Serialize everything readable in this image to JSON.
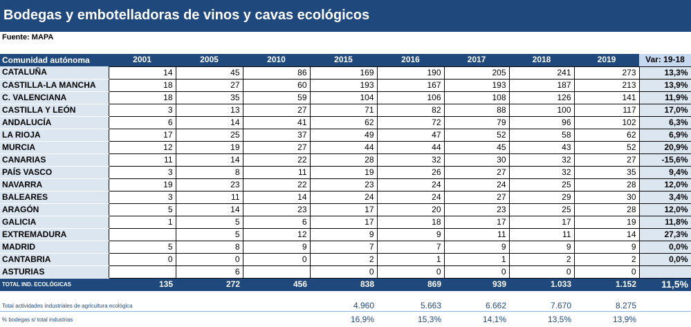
{
  "title": "Bodegas y embotelladoras de vinos y cavas ecológicos",
  "source": "Fuente: MAPA",
  "header": {
    "region": "Comunidad autónoma",
    "years": [
      "2001",
      "2005",
      "2010",
      "2015",
      "2016",
      "2017",
      "2018",
      "2019"
    ],
    "var": "Var: 19-18"
  },
  "rows": [
    {
      "name": "CATALUÑA",
      "values": [
        "14",
        "45",
        "86",
        "169",
        "190",
        "205",
        "241",
        "273"
      ],
      "var": "13,3%"
    },
    {
      "name": "CASTILLA-LA MANCHA",
      "values": [
        "18",
        "27",
        "60",
        "193",
        "167",
        "193",
        "187",
        "213"
      ],
      "var": "13,9%"
    },
    {
      "name": "C. VALENCIANA",
      "values": [
        "18",
        "35",
        "59",
        "104",
        "106",
        "108",
        "126",
        "141"
      ],
      "var": "11,9%"
    },
    {
      "name": "CASTILLA Y LEÓN",
      "values": [
        "3",
        "13",
        "27",
        "71",
        "82",
        "88",
        "100",
        "117"
      ],
      "var": "17,0%"
    },
    {
      "name": "ANDALUCÍA",
      "values": [
        "6",
        "14",
        "41",
        "62",
        "72",
        "79",
        "96",
        "102"
      ],
      "var": "6,3%"
    },
    {
      "name": "LA RIOJA",
      "values": [
        "17",
        "25",
        "37",
        "49",
        "47",
        "52",
        "58",
        "62"
      ],
      "var": "6,9%"
    },
    {
      "name": "MURCIA",
      "values": [
        "12",
        "19",
        "27",
        "44",
        "44",
        "45",
        "43",
        "52"
      ],
      "var": "20,9%"
    },
    {
      "name": "CANARIAS",
      "values": [
        "11",
        "14",
        "22",
        "28",
        "32",
        "30",
        "32",
        "27"
      ],
      "var": "-15,6%"
    },
    {
      "name": "PAÍS VASCO",
      "values": [
        "3",
        "8",
        "11",
        "19",
        "26",
        "27",
        "32",
        "35"
      ],
      "var": "9,4%"
    },
    {
      "name": "NAVARRA",
      "values": [
        "19",
        "23",
        "22",
        "23",
        "24",
        "24",
        "25",
        "28"
      ],
      "var": "12,0%"
    },
    {
      "name": "BALEARES",
      "values": [
        "3",
        "11",
        "14",
        "24",
        "24",
        "27",
        "29",
        "30"
      ],
      "var": "3,4%"
    },
    {
      "name": "ARAGÓN",
      "values": [
        "5",
        "14",
        "23",
        "17",
        "20",
        "23",
        "25",
        "28"
      ],
      "var": "12,0%"
    },
    {
      "name": "GALICIA",
      "values": [
        "1",
        "5",
        "6",
        "17",
        "18",
        "17",
        "17",
        "19"
      ],
      "var": "11,8%"
    },
    {
      "name": "EXTREMADURA",
      "values": [
        "",
        "5",
        "12",
        "9",
        "9",
        "11",
        "11",
        "14"
      ],
      "var": "27,3%"
    },
    {
      "name": "MADRID",
      "values": [
        "5",
        "8",
        "9",
        "7",
        "7",
        "9",
        "9",
        "9"
      ],
      "var": "0,0%"
    },
    {
      "name": "CANTABRIA",
      "values": [
        "0",
        "0",
        "0",
        "2",
        "1",
        "1",
        "2",
        "2"
      ],
      "var": "0,0%"
    },
    {
      "name": "ASTURIAS",
      "values": [
        "",
        "6",
        "",
        "0",
        "0",
        "0",
        "0",
        "0"
      ],
      "var": ""
    }
  ],
  "total": {
    "label": "TOTAL IND. ECOLÓGICAS",
    "values": [
      "135",
      "272",
      "456",
      "838",
      "869",
      "939",
      "1.033",
      "1.152"
    ],
    "var": "11,5%"
  },
  "extra_rows": [
    {
      "label": "Total actividades industriales de agricultura ecológica",
      "values": [
        "",
        "",
        "",
        "4.960",
        "5.663",
        "6.662",
        "7.670",
        "8.275"
      ]
    },
    {
      "label": "% bodegas s/ total industrias",
      "values": [
        "",
        "",
        "",
        "16,9%",
        "15,3%",
        "14,1%",
        "13,5%",
        "13,9%"
      ]
    }
  ]
}
